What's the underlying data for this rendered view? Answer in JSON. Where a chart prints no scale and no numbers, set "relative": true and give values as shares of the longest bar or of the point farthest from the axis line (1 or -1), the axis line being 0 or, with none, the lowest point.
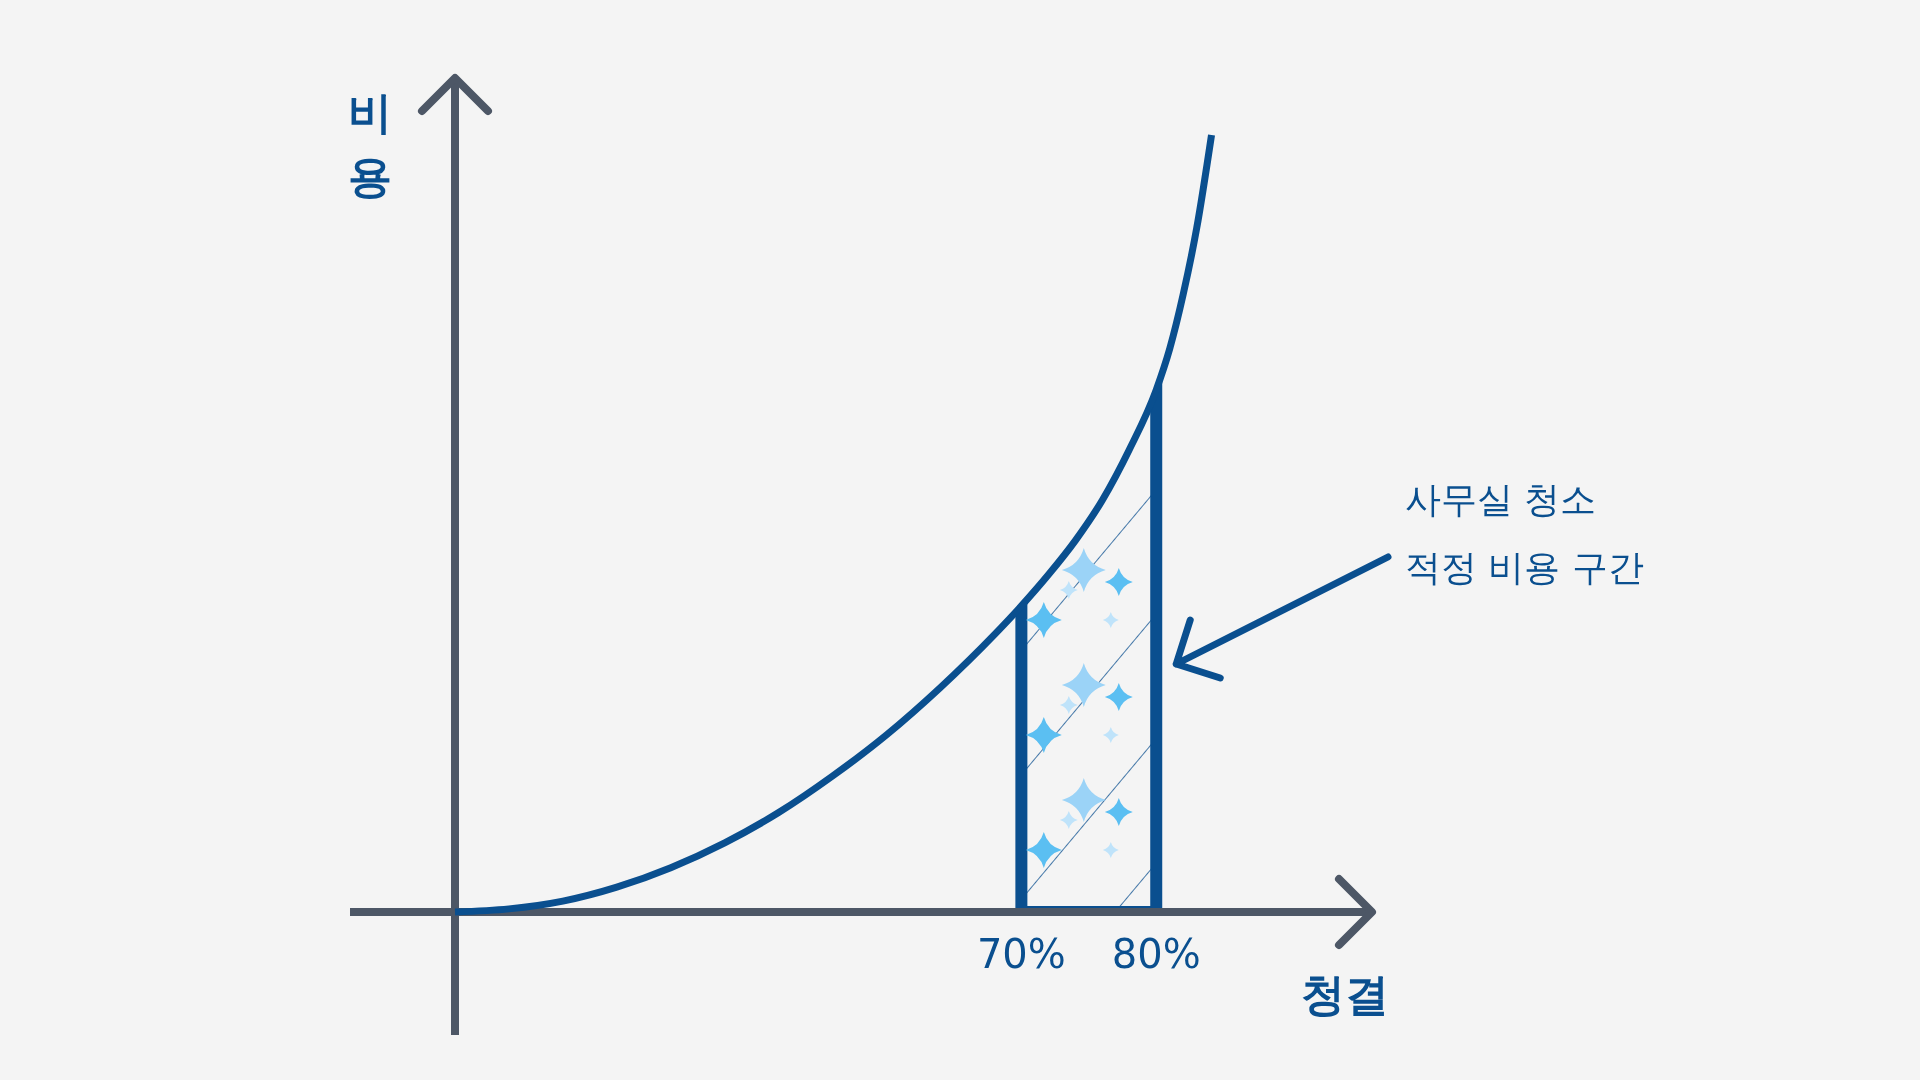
{
  "chart_data": {
    "type": "line",
    "xlabel": "청결",
    "ylabel": "비용",
    "relative": true,
    "x": [
      28,
      32,
      36,
      40,
      44,
      48,
      52,
      56,
      60,
      64,
      68,
      70,
      72,
      74,
      76,
      78,
      80,
      81,
      82,
      83,
      84.1
    ],
    "series": [
      {
        "color": "#0a4f8f",
        "values": [
          0,
          0.004,
          0.014,
          0.032,
          0.057,
          0.089,
          0.128,
          0.175,
          0.228,
          0.289,
          0.357,
          0.394,
          0.434,
          0.478,
          0.53,
          0.595,
          0.672,
          0.725,
          0.795,
          0.88,
          1
        ]
      }
    ],
    "xlim": [
      28,
      96
    ],
    "xticks": [
      {
        "value": 70,
        "label": "70%"
      },
      {
        "value": 80,
        "label": "80%"
      }
    ],
    "bands": [
      {
        "axis": "x",
        "from": 70,
        "to": 80,
        "color": "#0a4f8f"
      }
    ],
    "annotations": [
      "사무실 청소\n적정 비용 구간"
    ],
    "grid": false,
    "legend": false,
    "marker": "none",
    "line_style": "solid"
  }
}
